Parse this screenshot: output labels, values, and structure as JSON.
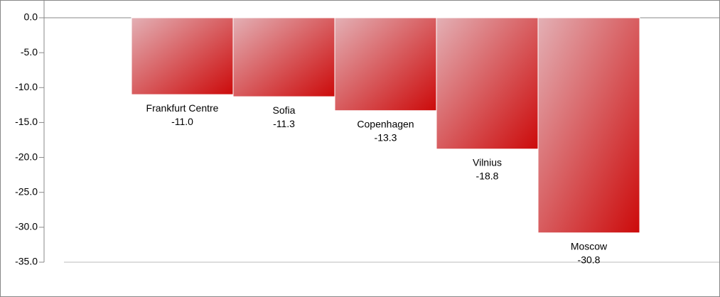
{
  "chart_data": {
    "type": "bar",
    "categories": [
      "Frankfurt Centre",
      "Sofia",
      "Copenhagen",
      "Vilnius",
      "Moscow"
    ],
    "values": [
      -11.0,
      -11.3,
      -13.3,
      -18.8,
      -30.8
    ],
    "value_labels": [
      "-11.0",
      "-11.3",
      "-13.3",
      "-18.8",
      "-30.8"
    ],
    "color": [
      "#e3b0b5",
      "#cc0a0a"
    ],
    "ylim": [
      -35,
      0
    ],
    "yticks": [
      {
        "value": 0,
        "label": "0.0"
      },
      {
        "value": -5,
        "label": "-5.0"
      },
      {
        "value": -10,
        "label": "-10.0"
      },
      {
        "value": -15,
        "label": "-15.0"
      },
      {
        "value": -20,
        "label": "-20.0"
      },
      {
        "value": -25,
        "label": "-25.0"
      },
      {
        "value": -30,
        "label": "-30.0"
      },
      {
        "value": -35,
        "label": "-35.0"
      }
    ]
  }
}
